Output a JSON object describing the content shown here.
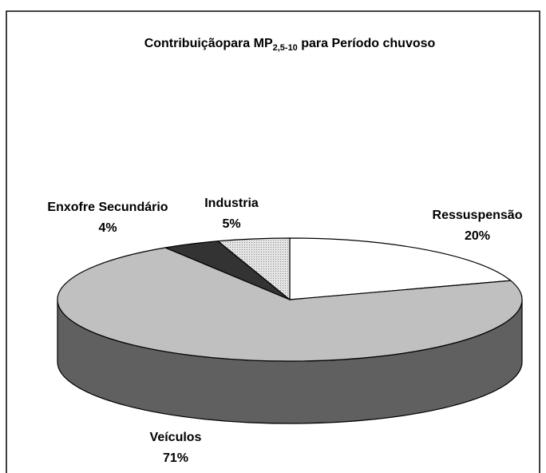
{
  "chart_data": {
    "type": "pie3d",
    "title": [
      "Contribuiçãopara MP",
      "2,5-10",
      " para Período chuvoso"
    ],
    "categories": [
      "Ressuspensão",
      "Veículos",
      "Enxofre Secundário",
      "Industria"
    ],
    "values": [
      20,
      71,
      4,
      5
    ],
    "value_labels": [
      "20%",
      "71%",
      "4%",
      "5%"
    ],
    "colors": [
      "#ffffff",
      "#c0c0c0",
      "#333333",
      "#e4e4e4"
    ]
  }
}
